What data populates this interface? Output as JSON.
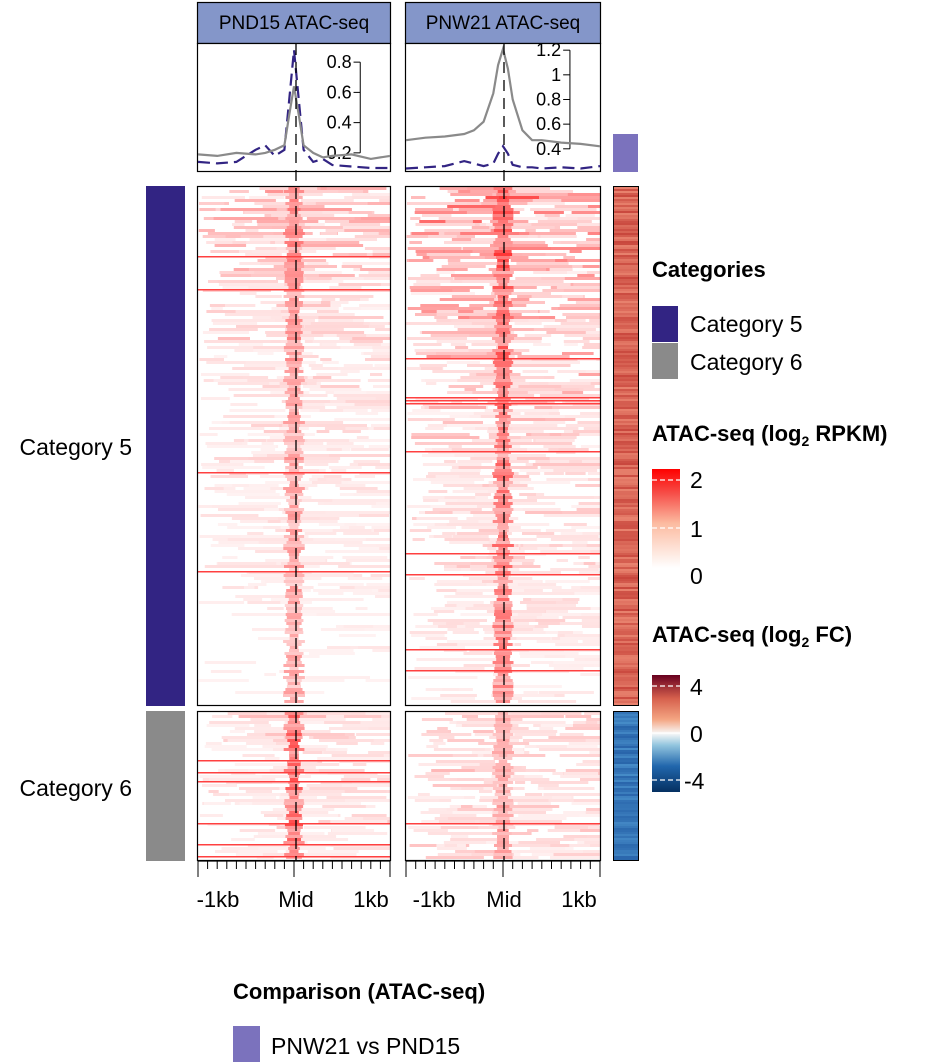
{
  "panels": [
    {
      "title": "PND15 ATAC-seq"
    },
    {
      "title": "PNW21 ATAC-seq"
    }
  ],
  "row_labels": [
    "Category 5",
    "Category 6"
  ],
  "x_ticks": [
    "-1kb",
    "Mid",
    "1kb"
  ],
  "legends": {
    "categories": {
      "title": "Categories",
      "items": [
        {
          "label": "Category 5",
          "color": "#322483"
        },
        {
          "label": "Category 6",
          "color": "#8a8a8a"
        }
      ]
    },
    "rpkm": {
      "title_main": "ATAC-seq (log",
      "title_sub": "2",
      "title_end": " RPKM)",
      "ticks": [
        "2",
        "1",
        "0"
      ]
    },
    "fc": {
      "title_main": "ATAC-seq (log",
      "title_sub": "2",
      "title_end": " FC)",
      "ticks": [
        "4",
        "0",
        "-4"
      ]
    },
    "comparison": {
      "title": "Comparison (ATAC-seq)",
      "items": [
        {
          "label": "PNW21 vs PND15",
          "color": "#7b72bd"
        }
      ]
    }
  },
  "colors": {
    "header_fill": "#8496c9",
    "category5": "#322483",
    "category6": "#8a8a8a",
    "comparison": "#7b72bd",
    "heat_high": "#ff0000",
    "fc_up": "#67001f",
    "fc_down": "#053061"
  },
  "chart_data": [
    {
      "type": "line",
      "panel": "PND15 ATAC-seq",
      "x_ticks": [
        "-1kb",
        "Mid",
        "1kb"
      ],
      "y_ticks": [
        0.2,
        0.4,
        0.6,
        0.8
      ],
      "ylim": [
        0.08,
        0.92
      ],
      "x": [
        -1.0,
        -0.8,
        -0.6,
        -0.4,
        -0.3,
        -0.2,
        -0.1,
        -0.05,
        0.0,
        0.05,
        0.1,
        0.2,
        0.3,
        0.4,
        0.6,
        0.8,
        1.0
      ],
      "series": [
        {
          "name": "Category 5",
          "color": "#322483",
          "dash": true,
          "values": [
            0.14,
            0.13,
            0.14,
            0.22,
            0.25,
            0.18,
            0.22,
            0.55,
            0.88,
            0.55,
            0.22,
            0.14,
            0.16,
            0.12,
            0.11,
            0.1,
            0.1
          ]
        },
        {
          "name": "Category 6",
          "color": "#8a8a8a",
          "dash": false,
          "values": [
            0.19,
            0.18,
            0.2,
            0.19,
            0.2,
            0.22,
            0.25,
            0.45,
            0.64,
            0.45,
            0.25,
            0.2,
            0.17,
            0.18,
            0.19,
            0.16,
            0.18
          ]
        }
      ]
    },
    {
      "type": "line",
      "panel": "PNW21 ATAC-seq",
      "x_ticks": [
        "-1kb",
        "Mid",
        "1kb"
      ],
      "y_ticks": [
        0.4,
        0.6,
        0.8,
        1,
        1.2
      ],
      "ylim": [
        0.22,
        1.25
      ],
      "x": [
        -1.0,
        -0.8,
        -0.6,
        -0.4,
        -0.3,
        -0.2,
        -0.1,
        -0.05,
        0.0,
        0.05,
        0.1,
        0.2,
        0.3,
        0.4,
        0.6,
        0.8,
        1.0
      ],
      "series": [
        {
          "name": "Category 5",
          "color": "#322483",
          "dash": true,
          "values": [
            0.24,
            0.25,
            0.26,
            0.3,
            0.28,
            0.26,
            0.28,
            0.36,
            0.42,
            0.36,
            0.27,
            0.25,
            0.25,
            0.24,
            0.25,
            0.24,
            0.26
          ]
        },
        {
          "name": "Category 6",
          "color": "#8a8a8a",
          "dash": false,
          "values": [
            0.47,
            0.49,
            0.5,
            0.52,
            0.55,
            0.62,
            0.85,
            1.08,
            1.21,
            1.05,
            0.8,
            0.55,
            0.47,
            0.47,
            0.45,
            0.44,
            0.42
          ]
        }
      ]
    }
  ]
}
